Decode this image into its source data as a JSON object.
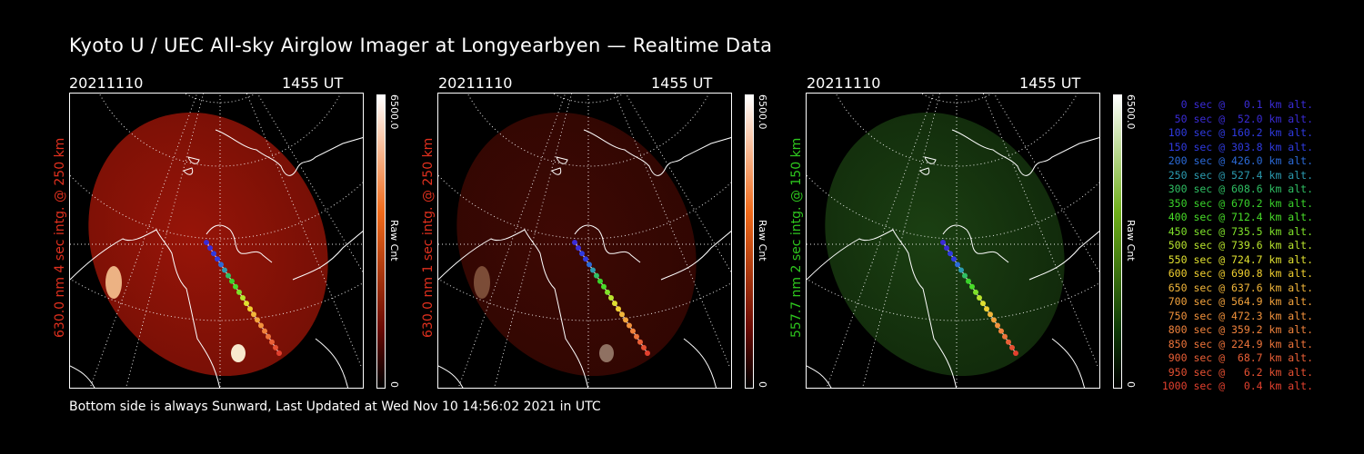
{
  "title": "Kyoto U / UEC All-sky Airglow Imager at Longyearbyen — Realtime Data",
  "footer": "Bottom side is always Sunward, Last Updated at Wed Nov 10 14:56:02 2021 in UTC",
  "panels": [
    {
      "date": "20211110",
      "time": "1455 UT",
      "label": "630.0 nm 4 sec intg. @ 250 km",
      "label_color": "#e0301e",
      "cbar_max": "6500.0",
      "cbar_min": "0",
      "cbar_label": "Raw Cnt",
      "cmap": "red",
      "brightness": 0.85
    },
    {
      "date": "20211110",
      "time": "1455 UT",
      "label": "630.0 nm 1 sec intg. @ 250 km",
      "label_color": "#e0301e",
      "cbar_max": "6500.0",
      "cbar_min": "0",
      "cbar_label": "Raw Cnt",
      "cmap": "red",
      "brightness": 0.35
    },
    {
      "date": "20211110",
      "time": "1455 UT",
      "label": "557.7 nm 2 sec intg. @ 150 km",
      "label_color": "#2ec61e",
      "cbar_max": "6500.0",
      "cbar_min": "0",
      "cbar_label": "Raw Cnt",
      "cmap": "green",
      "brightness": 0.6
    }
  ],
  "legend": [
    {
      "text": "0 sec @   0.1 km alt.",
      "color": "#3a2bd6"
    },
    {
      "text": "50 sec @  52.0 km alt.",
      "color": "#3a2bd6"
    },
    {
      "text": "100 sec @ 160.2 km alt.",
      "color": "#2f3ae0"
    },
    {
      "text": "150 sec @ 303.8 km alt.",
      "color": "#2f3ae0"
    },
    {
      "text": "200 sec @ 426.0 km alt.",
      "color": "#2b6ad8"
    },
    {
      "text": "250 sec @ 527.4 km alt.",
      "color": "#2b9bb0"
    },
    {
      "text": "300 sec @ 608.6 km alt.",
      "color": "#2fbf63"
    },
    {
      "text": "350 sec @ 670.2 km alt.",
      "color": "#39d22a"
    },
    {
      "text": "400 sec @ 712.4 km alt.",
      "color": "#48dd28"
    },
    {
      "text": "450 sec @ 735.5 km alt.",
      "color": "#7fe12a"
    },
    {
      "text": "500 sec @ 739.6 km alt.",
      "color": "#b8e42d"
    },
    {
      "text": "550 sec @ 724.7 km alt.",
      "color": "#e0e030"
    },
    {
      "text": "600 sec @ 690.8 km alt.",
      "color": "#f0cf30"
    },
    {
      "text": "650 sec @ 637.6 km alt.",
      "color": "#f2b63a"
    },
    {
      "text": "700 sec @ 564.9 km alt.",
      "color": "#f2a23c"
    },
    {
      "text": "750 sec @ 472.3 km alt.",
      "color": "#f2923c"
    },
    {
      "text": "800 sec @ 359.2 km alt.",
      "color": "#f0823c"
    },
    {
      "text": "850 sec @ 224.9 km alt.",
      "color": "#ee743a"
    },
    {
      "text": "900 sec @  68.7 km alt.",
      "color": "#ea5f36"
    },
    {
      "text": "950 sec @   6.2 km alt.",
      "color": "#e65032"
    },
    {
      "text": "1000 sec @   0.4 km alt.",
      "color": "#e2402e"
    }
  ]
}
